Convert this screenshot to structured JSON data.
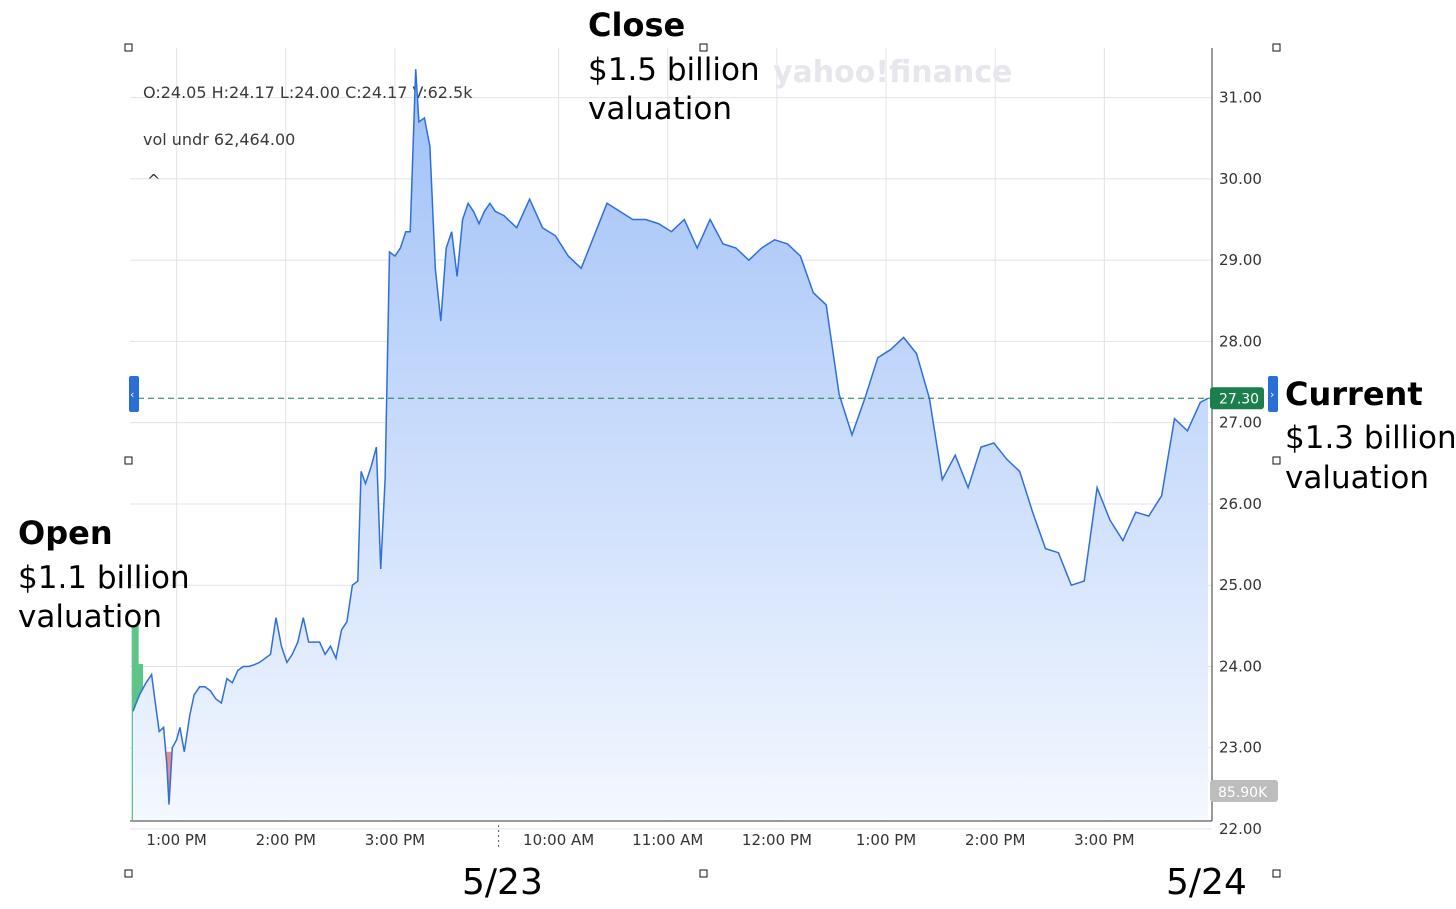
{
  "chart_data": {
    "type": "area",
    "ohlc_line": "O:24.05   H:24.17   L:24.00   C:24.17   V:62.5k",
    "vol_line": "vol undr   62,464.00",
    "watermark": "yahoo!finance",
    "collapse_glyph": "^",
    "ylim": [
      22.0,
      31.5
    ],
    "y_ticks": [
      "31.00",
      "30.00",
      "29.00",
      "28.00",
      "27.00",
      "26.00",
      "25.00",
      "24.00",
      "23.00",
      "22.00"
    ],
    "x_tick_labels": [
      "1:00 PM",
      "2:00 PM",
      "3:00 PM",
      "10:00 AM",
      "11:00 AM",
      "12:00 PM",
      "1:00 PM",
      "2:00 PM",
      "3:00 PM"
    ],
    "x_tick_positions": [
      1.0,
      2.0,
      3.0,
      4.5,
      5.5,
      6.5,
      7.5,
      8.5,
      9.5
    ],
    "x_range": [
      0.6,
      10.45
    ],
    "day_break": 3.95,
    "day_labels": [
      "5/23",
      "5/24"
    ],
    "current_price": 27.3,
    "current_price_label": "27.30",
    "volume_label": "85.90K",
    "colors": {
      "line": "#2f6fdb",
      "fill_top": "#9fc0f7",
      "fill_bottom": "#f4f8ff",
      "up": "#5cc587",
      "down": "#f08b85",
      "current": "#1a7f4b",
      "grid": "#dfe3e8"
    },
    "price": [
      [
        0.6,
        23.45
      ],
      [
        0.66,
        23.65
      ],
      [
        0.72,
        23.8
      ],
      [
        0.77,
        23.9
      ],
      [
        0.8,
        23.6
      ],
      [
        0.84,
        23.2
      ],
      [
        0.88,
        23.25
      ],
      [
        0.91,
        22.8
      ],
      [
        0.93,
        22.3
      ],
      [
        0.96,
        23.0
      ],
      [
        1.0,
        23.1
      ],
      [
        1.03,
        23.25
      ],
      [
        1.07,
        22.95
      ],
      [
        1.12,
        23.4
      ],
      [
        1.16,
        23.65
      ],
      [
        1.21,
        23.75
      ],
      [
        1.26,
        23.75
      ],
      [
        1.31,
        23.7
      ],
      [
        1.36,
        23.6
      ],
      [
        1.41,
        23.55
      ],
      [
        1.46,
        23.85
      ],
      [
        1.51,
        23.8
      ],
      [
        1.56,
        23.95
      ],
      [
        1.61,
        24.0
      ],
      [
        1.66,
        24.0
      ],
      [
        1.71,
        24.02
      ],
      [
        1.76,
        24.05
      ],
      [
        1.81,
        24.1
      ],
      [
        1.86,
        24.15
      ],
      [
        1.91,
        24.6
      ],
      [
        1.96,
        24.25
      ],
      [
        2.01,
        24.05
      ],
      [
        2.06,
        24.15
      ],
      [
        2.11,
        24.3
      ],
      [
        2.16,
        24.6
      ],
      [
        2.21,
        24.3
      ],
      [
        2.26,
        24.3
      ],
      [
        2.31,
        24.3
      ],
      [
        2.36,
        24.15
      ],
      [
        2.41,
        24.25
      ],
      [
        2.46,
        24.1
      ],
      [
        2.51,
        24.45
      ],
      [
        2.56,
        24.55
      ],
      [
        2.61,
        25.0
      ],
      [
        2.66,
        25.05
      ],
      [
        2.69,
        26.4
      ],
      [
        2.73,
        26.25
      ],
      [
        2.78,
        26.45
      ],
      [
        2.83,
        26.7
      ],
      [
        2.87,
        25.2
      ],
      [
        2.91,
        26.3
      ],
      [
        2.95,
        29.1
      ],
      [
        3.0,
        29.05
      ],
      [
        3.05,
        29.15
      ],
      [
        3.1,
        29.35
      ],
      [
        3.14,
        29.35
      ],
      [
        3.19,
        31.35
      ],
      [
        3.22,
        30.7
      ],
      [
        3.27,
        30.75
      ],
      [
        3.32,
        30.4
      ],
      [
        3.37,
        28.9
      ],
      [
        3.42,
        28.25
      ],
      [
        3.47,
        29.15
      ],
      [
        3.52,
        29.35
      ],
      [
        3.57,
        28.8
      ],
      [
        3.62,
        29.5
      ],
      [
        3.67,
        29.7
      ],
      [
        3.72,
        29.6
      ],
      [
        3.77,
        29.45
      ],
      [
        3.82,
        29.6
      ],
      [
        3.87,
        29.7
      ],
      [
        3.92,
        29.6
      ],
      [
        3.97,
        29.55
      ],
      [
        4.02,
        29.4
      ],
      [
        4.07,
        29.75
      ],
      [
        4.12,
        29.4
      ],
      [
        4.17,
        29.3
      ],
      [
        4.22,
        29.05
      ],
      [
        4.27,
        28.9
      ],
      [
        4.32,
        29.3
      ],
      [
        4.37,
        29.7
      ],
      [
        4.42,
        29.6
      ],
      [
        4.47,
        29.5
      ],
      [
        4.52,
        29.5
      ],
      [
        4.57,
        29.45
      ],
      [
        4.62,
        29.35
      ],
      [
        4.67,
        29.5
      ],
      [
        4.72,
        29.15
      ],
      [
        4.77,
        29.5
      ],
      [
        4.82,
        29.2
      ],
      [
        4.87,
        29.15
      ],
      [
        4.92,
        29.0
      ],
      [
        4.97,
        29.15
      ],
      [
        5.02,
        29.25
      ],
      [
        5.07,
        29.2
      ],
      [
        5.12,
        29.05
      ],
      [
        5.17,
        28.6
      ],
      [
        5.22,
        28.45
      ],
      [
        5.27,
        27.35
      ],
      [
        5.32,
        26.85
      ],
      [
        5.37,
        27.3
      ],
      [
        5.42,
        27.8
      ],
      [
        5.47,
        27.9
      ],
      [
        5.52,
        28.05
      ],
      [
        5.57,
        27.85
      ],
      [
        5.62,
        27.3
      ],
      [
        5.67,
        26.3
      ],
      [
        5.72,
        26.6
      ],
      [
        5.77,
        26.2
      ],
      [
        5.82,
        26.7
      ],
      [
        5.87,
        26.75
      ],
      [
        5.92,
        26.55
      ],
      [
        5.97,
        26.4
      ],
      [
        6.02,
        25.9
      ],
      [
        6.07,
        25.45
      ],
      [
        6.12,
        25.4
      ],
      [
        6.17,
        25.0
      ],
      [
        6.22,
        25.05
      ],
      [
        6.27,
        26.2
      ],
      [
        6.32,
        25.8
      ],
      [
        6.37,
        25.55
      ],
      [
        6.42,
        25.9
      ],
      [
        6.47,
        25.85
      ],
      [
        6.52,
        26.1
      ],
      [
        6.57,
        27.05
      ],
      [
        6.62,
        26.9
      ],
      [
        6.67,
        27.25
      ],
      [
        6.7,
        27.3
      ]
    ],
    "price_x_remap": [
      [
        0.6,
        0.6
      ],
      [
        3.95,
        3.95
      ],
      [
        6.7,
        10.45
      ]
    ],
    "volume_max": 100,
    "volume": [
      [
        0.62,
        100,
        1
      ],
      [
        0.66,
        80,
        1
      ],
      [
        0.7,
        60,
        1
      ],
      [
        0.74,
        55,
        0
      ],
      [
        0.78,
        40,
        1
      ],
      [
        0.82,
        38,
        0
      ],
      [
        0.86,
        45,
        1
      ],
      [
        0.9,
        32,
        1
      ],
      [
        0.94,
        35,
        0
      ],
      [
        0.98,
        35,
        1
      ],
      [
        1.02,
        30,
        1
      ],
      [
        1.06,
        28,
        0
      ],
      [
        1.1,
        10,
        0
      ],
      [
        1.14,
        12,
        0
      ],
      [
        1.18,
        12,
        1
      ],
      [
        1.22,
        15,
        1
      ],
      [
        1.26,
        15,
        1
      ],
      [
        1.3,
        15,
        0
      ],
      [
        1.34,
        10,
        1
      ],
      [
        1.38,
        10,
        1
      ],
      [
        1.42,
        7,
        0
      ],
      [
        1.46,
        8,
        1
      ],
      [
        1.5,
        10,
        1
      ],
      [
        1.54,
        40,
        1
      ],
      [
        1.58,
        10,
        0
      ],
      [
        1.62,
        14,
        0
      ],
      [
        1.66,
        28,
        1
      ],
      [
        1.7,
        24,
        1
      ],
      [
        1.74,
        8,
        1
      ],
      [
        1.78,
        8,
        0
      ],
      [
        1.82,
        8,
        1
      ],
      [
        1.86,
        8,
        1
      ],
      [
        1.9,
        8,
        0
      ],
      [
        1.94,
        18,
        1
      ],
      [
        1.98,
        10,
        1
      ],
      [
        2.02,
        10,
        1
      ],
      [
        2.06,
        17,
        1
      ],
      [
        2.1,
        22,
        1
      ],
      [
        2.14,
        30,
        1
      ],
      [
        2.18,
        35,
        1
      ],
      [
        2.22,
        45,
        1
      ],
      [
        2.26,
        25,
        1
      ],
      [
        2.3,
        44,
        1
      ],
      [
        2.34,
        15,
        0
      ],
      [
        2.38,
        20,
        1
      ],
      [
        2.42,
        45,
        1
      ],
      [
        2.46,
        46,
        0
      ],
      [
        2.5,
        45,
        0
      ],
      [
        2.54,
        42,
        0
      ],
      [
        2.58,
        42,
        0
      ],
      [
        2.62,
        8,
        0
      ],
      [
        2.66,
        6,
        0
      ],
      [
        2.7,
        12,
        0
      ],
      [
        2.74,
        7,
        1
      ],
      [
        2.78,
        10,
        1
      ],
      [
        2.82,
        25,
        1
      ],
      [
        2.86,
        27,
        0
      ],
      [
        2.9,
        14,
        1
      ],
      [
        2.94,
        8,
        0
      ],
      [
        2.98,
        18,
        0
      ],
      [
        3.02,
        9,
        1
      ],
      [
        3.06,
        12,
        1
      ],
      [
        3.1,
        6,
        1
      ],
      [
        3.14,
        9,
        0
      ],
      [
        3.18,
        7,
        1
      ],
      [
        3.22,
        6,
        0
      ],
      [
        3.26,
        4,
        0
      ],
      [
        3.3,
        4,
        1
      ],
      [
        3.34,
        3,
        0
      ],
      [
        3.38,
        3,
        1
      ],
      [
        3.42,
        4,
        0
      ],
      [
        3.46,
        3,
        1
      ],
      [
        3.5,
        4,
        1
      ],
      [
        3.54,
        3,
        0
      ],
      [
        3.58,
        4,
        0
      ],
      [
        3.62,
        3,
        0
      ],
      [
        3.66,
        5,
        1
      ],
      [
        3.7,
        3,
        0
      ],
      [
        3.74,
        3,
        1
      ],
      [
        3.78,
        2,
        1
      ],
      [
        3.82,
        2,
        1
      ],
      [
        3.86,
        2,
        0
      ],
      [
        3.9,
        2,
        0
      ],
      [
        3.94,
        2,
        1
      ],
      [
        3.98,
        2,
        1
      ],
      [
        4.02,
        2,
        1
      ],
      [
        4.06,
        2,
        0
      ],
      [
        4.1,
        2,
        0
      ],
      [
        4.14,
        2,
        1
      ],
      [
        4.18,
        2,
        1
      ],
      [
        4.22,
        2,
        0
      ],
      [
        4.26,
        2,
        0
      ],
      [
        4.3,
        2,
        1
      ],
      [
        4.34,
        2,
        1
      ],
      [
        4.38,
        2,
        0
      ],
      [
        4.42,
        2,
        0
      ],
      [
        4.46,
        2,
        0
      ],
      [
        4.5,
        2,
        1
      ],
      [
        4.54,
        3,
        1
      ],
      [
        4.58,
        5,
        0
      ],
      [
        4.62,
        30,
        0
      ],
      [
        4.66,
        25,
        0
      ],
      [
        4.7,
        8,
        1
      ],
      [
        4.74,
        5,
        1
      ],
      [
        4.78,
        5,
        1
      ],
      [
        4.82,
        5,
        1
      ],
      [
        4.86,
        4,
        0
      ],
      [
        4.9,
        5,
        0
      ],
      [
        4.94,
        5,
        0
      ],
      [
        4.98,
        5,
        0
      ],
      [
        5.02,
        6,
        1
      ],
      [
        5.06,
        6,
        0
      ],
      [
        5.1,
        4,
        1
      ],
      [
        5.14,
        5,
        1
      ],
      [
        5.18,
        3,
        1
      ],
      [
        5.22,
        2,
        1
      ],
      [
        5.26,
        2,
        1
      ],
      [
        5.3,
        12,
        0
      ],
      [
        5.34,
        10,
        0
      ],
      [
        5.38,
        12,
        0
      ],
      [
        5.42,
        6,
        0
      ],
      [
        5.46,
        8,
        0
      ],
      [
        5.5,
        14,
        1
      ],
      [
        5.54,
        2,
        1
      ],
      [
        5.58,
        6,
        0
      ],
      [
        5.62,
        8,
        1
      ],
      [
        5.66,
        14,
        1
      ],
      [
        5.7,
        14,
        0
      ],
      [
        5.74,
        16,
        0
      ],
      [
        5.78,
        18,
        1
      ]
    ],
    "volume_x_remap": [
      [
        0.6,
        0.6
      ],
      [
        2.6,
        2.6
      ],
      [
        3.95,
        3.95
      ],
      [
        5.8,
        10.45
      ]
    ]
  },
  "annotations": {
    "open": {
      "title": "Open",
      "line1": "$1.1 billion",
      "line2": "valuation"
    },
    "close": {
      "title": "Close",
      "line1": "$1.5 billion",
      "line2": "valuation"
    },
    "current": {
      "title": "Current",
      "line1": "$1.3 billion",
      "line2": "valuation"
    }
  }
}
